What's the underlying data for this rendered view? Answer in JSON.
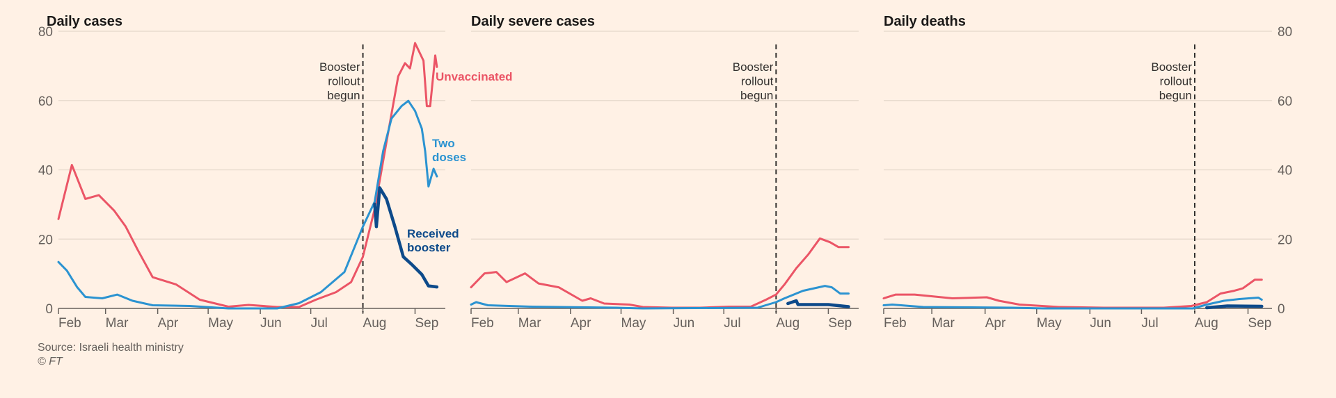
{
  "colors": {
    "background": "#fff1e5",
    "unvaccinated": "#eb5566",
    "two_doses": "#2b93d1",
    "booster": "#0d4a8a",
    "grid": "#e9dccf",
    "axis": "#66605c"
  },
  "source": "Source: Israeli health ministry",
  "copyright": "© FT",
  "chart_data": [
    {
      "type": "line",
      "title": "Daily cases",
      "ylim": [
        0,
        80
      ],
      "yticks": [
        "0",
        "20",
        "40",
        "60",
        "80"
      ],
      "ytick_values": [
        0,
        20,
        40,
        60,
        80
      ],
      "xticks": [
        "Feb",
        "Mar",
        "Apr",
        "May",
        "Jun",
        "Jul",
        "Aug",
        "Sep"
      ],
      "xtick_days": [
        0,
        28,
        59,
        89,
        120,
        150,
        181,
        212
      ],
      "x_unit": "days since 1 Feb",
      "xlim": [
        0,
        230
      ],
      "annotation": {
        "lines": [
          "Booster",
          "rollout",
          "begun"
        ],
        "day": 181
      },
      "series_labels": {
        "unvaccinated": [
          "Unvaccinated"
        ],
        "two_doses": [
          "Two",
          "doses"
        ],
        "booster": [
          "Received",
          "booster"
        ]
      },
      "series": [
        {
          "name": "Unvaccinated",
          "key": "unvaccinated",
          "x": [
            0,
            8,
            16,
            24,
            33,
            40,
            47,
            56,
            70,
            84,
            101,
            113,
            130,
            143,
            153,
            165,
            174,
            181,
            188,
            195,
            202,
            206,
            209,
            212,
            217,
            219,
            221,
            224,
            225
          ],
          "y": [
            25.8,
            41.4,
            31.6,
            32.7,
            28.3,
            23.6,
            17,
            9,
            6.9,
            2.5,
            0.5,
            1,
            0.4,
            0.4,
            2.5,
            4.7,
            7.6,
            14.9,
            28.7,
            48,
            67,
            70.8,
            69.3,
            76.6,
            71.5,
            58.4,
            58.4,
            73,
            69.7
          ]
        },
        {
          "name": "Two doses",
          "key": "two_doses",
          "x": [
            0,
            5,
            11,
            16,
            26,
            35,
            44,
            56,
            78,
            101,
            130,
            143,
            156,
            170,
            181,
            188,
            193,
            198,
            204,
            208,
            212,
            216,
            218,
            220,
            223,
            225
          ],
          "y": [
            13.4,
            10.9,
            6.2,
            3.3,
            2.9,
            4,
            2.2,
            0.9,
            0.7,
            0,
            0,
            1.5,
            4.7,
            10.5,
            23.6,
            30.8,
            45.4,
            54.8,
            58.4,
            59.9,
            57,
            51.9,
            45.4,
            35.2,
            40.3,
            38.1
          ]
        },
        {
          "name": "Received booster",
          "key": "booster",
          "x": [
            188,
            189,
            191,
            195,
            200,
            205,
            210,
            216,
            220,
            225
          ],
          "y": [
            30.1,
            23.6,
            34.8,
            31.6,
            23.6,
            14.9,
            12.7,
            9.8,
            6.5,
            6.2
          ]
        }
      ]
    },
    {
      "type": "line",
      "title": "Daily severe cases",
      "ylim": [
        0,
        80
      ],
      "yticks": [],
      "ytick_values": [
        0,
        20,
        40,
        60,
        80
      ],
      "xticks": [
        "Feb",
        "Mar",
        "Apr",
        "May",
        "Jun",
        "Jul",
        "Aug",
        "Sep"
      ],
      "xtick_days": [
        0,
        28,
        59,
        89,
        120,
        150,
        181,
        212
      ],
      "x_unit": "days since 1 Feb",
      "xlim": [
        0,
        230
      ],
      "annotation": {
        "lines": [
          "Booster",
          "rollout",
          "begun"
        ],
        "day": 181
      },
      "series": [
        {
          "name": "Unvaccinated",
          "key": "unvaccinated",
          "x": [
            0,
            8,
            15,
            21,
            32,
            40,
            52,
            66,
            71,
            79,
            94,
            102,
            119,
            136,
            153,
            166,
            175,
            181,
            186,
            193,
            200,
            207,
            213,
            218,
            224
          ],
          "y": [
            6.1,
            10.1,
            10.5,
            7.6,
            10.1,
            7.2,
            6.1,
            2.2,
            2.9,
            1.4,
            1.1,
            0.4,
            0.2,
            0.2,
            0.5,
            0.5,
            2.5,
            4,
            6.9,
            11.6,
            15.5,
            20.2,
            19.1,
            17.7,
            17.7
          ]
        },
        {
          "name": "Two doses",
          "key": "two_doses",
          "x": [
            0,
            3,
            10,
            36,
            86,
            102,
            170,
            181,
            186,
            197,
            210,
            214,
            219,
            224
          ],
          "y": [
            1.1,
            1.8,
            0.9,
            0.5,
            0.2,
            0,
            0.2,
            1.8,
            2.9,
            5.1,
            6.5,
            6.1,
            4.3,
            4.3
          ]
        },
        {
          "name": "Received booster",
          "key": "booster",
          "x": [
            188,
            193,
            194,
            212,
            224
          ],
          "y": [
            1.4,
            2.2,
            1.1,
            1.1,
            0.5
          ]
        }
      ]
    },
    {
      "type": "line",
      "title": "Daily deaths",
      "ylim": [
        0,
        80
      ],
      "yticks": [
        "0",
        "20",
        "40",
        "60",
        "80"
      ],
      "ytick_values": [
        0,
        20,
        40,
        60,
        80
      ],
      "xticks": [
        "Feb",
        "Mar",
        "Apr",
        "May",
        "Jun",
        "Jul",
        "Aug",
        "Sep"
      ],
      "xtick_days": [
        0,
        28,
        59,
        89,
        120,
        150,
        181,
        212
      ],
      "x_unit": "days since 1 Feb",
      "xlim": [
        0,
        230
      ],
      "annotation": {
        "lines": [
          "Booster",
          "rollout",
          "begun"
        ],
        "day": 181
      },
      "series": [
        {
          "name": "Unvaccinated",
          "key": "unvaccinated",
          "x": [
            0,
            7,
            18,
            40,
            60,
            67,
            79,
            102,
            128,
            163,
            179,
            188,
            196,
            204,
            209,
            216,
            220
          ],
          "y": [
            2.9,
            4,
            4,
            2.9,
            3.2,
            2.2,
            1.1,
            0.4,
            0.2,
            0.2,
            0.7,
            1.8,
            4.3,
            5.1,
            5.8,
            8.3,
            8.3
          ]
        },
        {
          "name": "Two doses",
          "key": "two_doses",
          "x": [
            0,
            5,
            23,
            75,
            93,
            180,
            188,
            198,
            207,
            218,
            220
          ],
          "y": [
            0.9,
            1.1,
            0.4,
            0.2,
            0,
            0,
            1.1,
            2.2,
            2.7,
            3.1,
            2.5
          ]
        },
        {
          "name": "Received booster",
          "key": "booster",
          "x": [
            188,
            200,
            220
          ],
          "y": [
            0.2,
            0.7,
            0.6
          ]
        }
      ]
    }
  ]
}
